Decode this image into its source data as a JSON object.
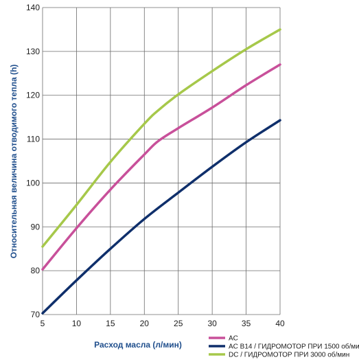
{
  "chart_data": {
    "type": "line",
    "xlabel": "Расход  масла  (л/мин)",
    "ylabel": "Относительная величина отводимого тепла (h)",
    "xlim": [
      5,
      40
    ],
    "ylim": [
      70,
      140
    ],
    "x_ticks": [
      5,
      10,
      15,
      20,
      25,
      30,
      35,
      40
    ],
    "y_ticks": [
      70,
      80,
      90,
      100,
      110,
      120,
      130,
      140
    ],
    "grid": true,
    "legend_position": "bottom-right",
    "series": [
      {
        "name": "AC",
        "color": "#c8509a",
        "x": [
          5,
          10,
          15,
          20,
          22,
          25,
          30,
          35,
          40
        ],
        "y": [
          80.3,
          89.7,
          98.5,
          106.5,
          109.5,
          112.5,
          117.2,
          122.3,
          127
        ]
      },
      {
        "name": "AC B14 / ГИДРОМОТОР ПРИ 1500 об/мин",
        "color": "#0f2f6b",
        "x": [
          5,
          10,
          15,
          20,
          25,
          30,
          35,
          40
        ],
        "y": [
          70.3,
          77.8,
          85,
          91.8,
          97.8,
          103.7,
          109.3,
          114.3
        ]
      },
      {
        "name": "DC / ГИДРОМОТОР ПРИ 3000 об/мин",
        "color": "#a6c84a",
        "x": [
          5,
          10,
          15,
          20,
          22,
          25,
          30,
          35,
          40
        ],
        "y": [
          85.5,
          95,
          104.8,
          113.5,
          116.5,
          120.2,
          125.5,
          130.5,
          135
        ]
      }
    ]
  }
}
